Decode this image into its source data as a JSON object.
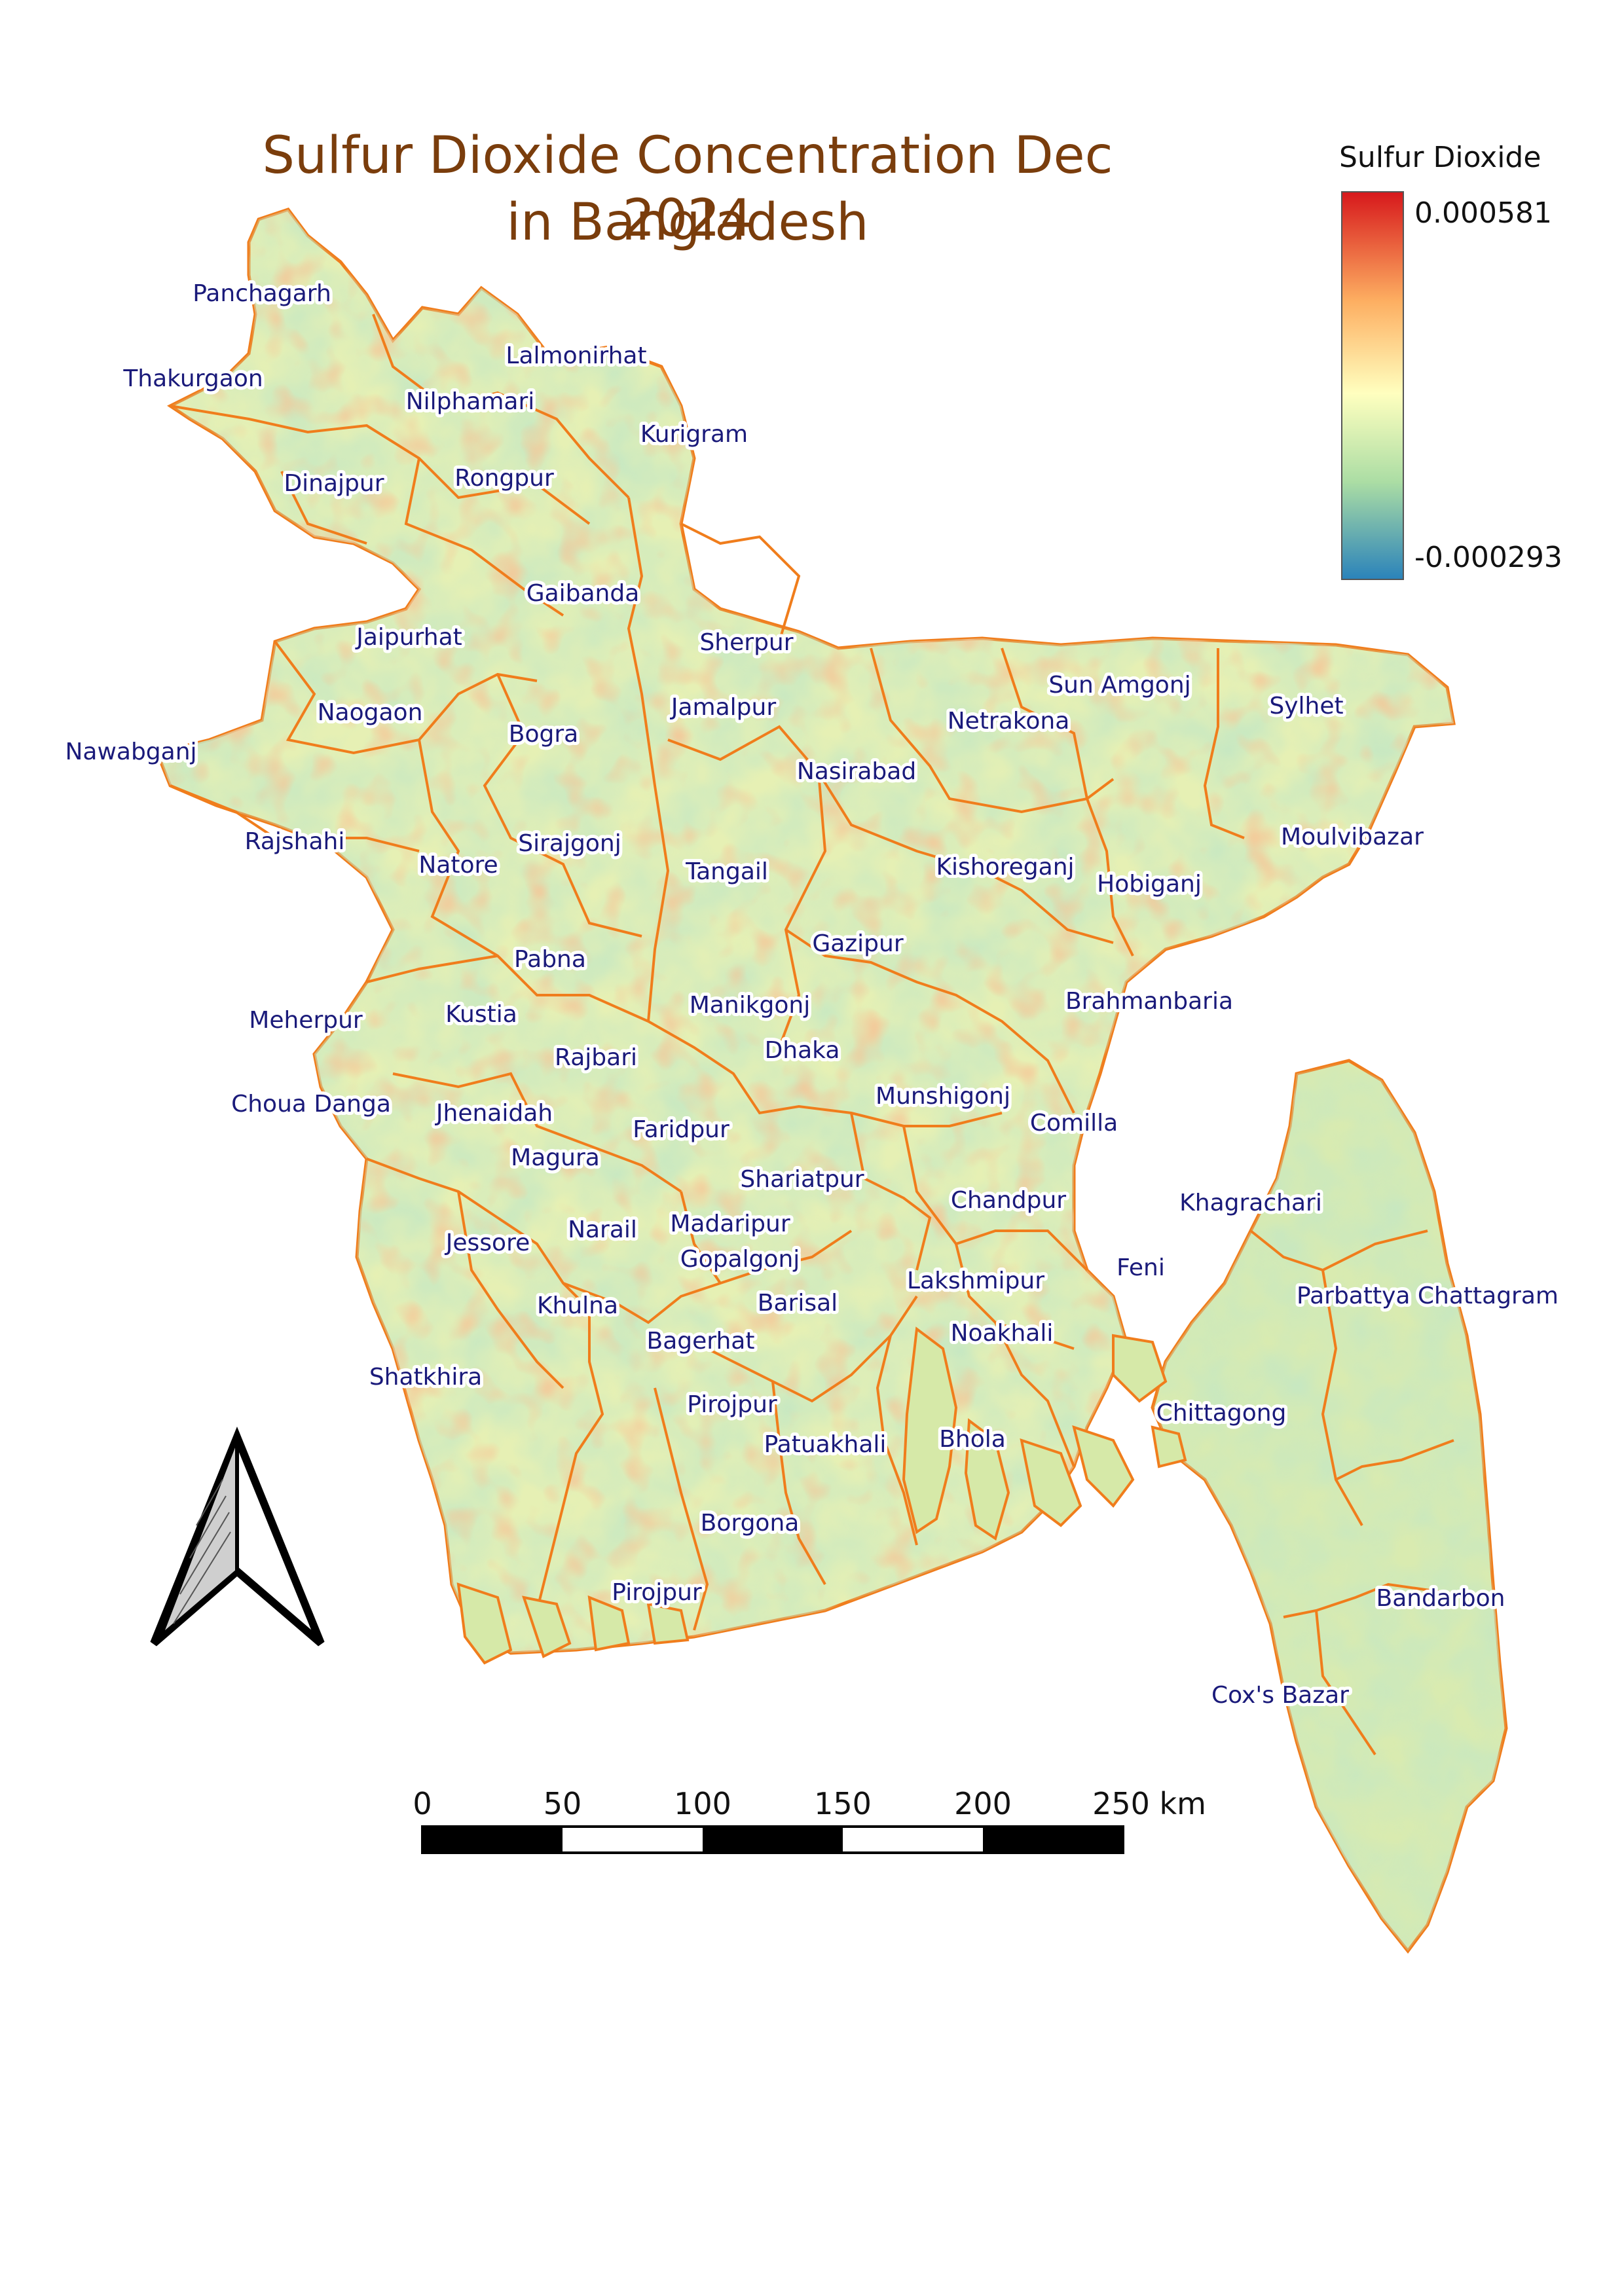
{
  "title": {
    "line1": "Sulfur Dioxide Concentration Dec 2024",
    "line2": "in Bangladesh"
  },
  "legend": {
    "title": "Sulfur Dioxide",
    "max": "0.000581",
    "min": "-0.000293",
    "colors": [
      "#d7191c",
      "#fdae61",
      "#ffffbf",
      "#abdda4",
      "#2b83ba"
    ]
  },
  "boundary_color": "#f07d1c",
  "scale_bar": {
    "labels": [
      "0",
      "50",
      "100",
      "150",
      "200",
      "250 km"
    ]
  },
  "north_arrow": {
    "icon": "north-arrow-icon"
  },
  "districts": [
    "Panchagarh",
    "Thakurgaon",
    "Lalmonirhat",
    "Nilphamari",
    "Kurigram",
    "Dinajpur",
    "Rongpur",
    "Gaibanda",
    "Jaipurhat",
    "Sherpur",
    "Naogaon",
    "Jamalpur",
    "Sun Amgonj",
    "Sylhet",
    "Netrakona",
    "Bogra",
    "Nawabganj",
    "Nasirabad",
    "Moulvibazar",
    "Rajshahi",
    "Sirajgonj",
    "Natore",
    "Tangail",
    "Kishoreganj",
    "Hobiganj",
    "Gazipur",
    "Pabna",
    "Brahmanbaria",
    "Manikgonj",
    "Kustia",
    "Meherpur",
    "Dhaka",
    "Rajbari",
    "Munshigonj",
    "Choua Danga",
    "Jhenaidah",
    "Comilla",
    "Faridpur",
    "Magura",
    "Shariatpur",
    "Chandpur",
    "Khagrachari",
    "Madaripur",
    "Narail",
    "Jessore",
    "Gopalgonj",
    "Feni",
    "Lakshmipur",
    "Parbattya Chattagram",
    "Barisal",
    "Khulna",
    "Noakhali",
    "Bagerhat",
    "Shatkhira",
    "Pirojpur",
    "Chittagong",
    "Patuakhali",
    "Bhola",
    "Borgona",
    "Pirojpur",
    "Bandarbon",
    "Cox's Bazar"
  ]
}
